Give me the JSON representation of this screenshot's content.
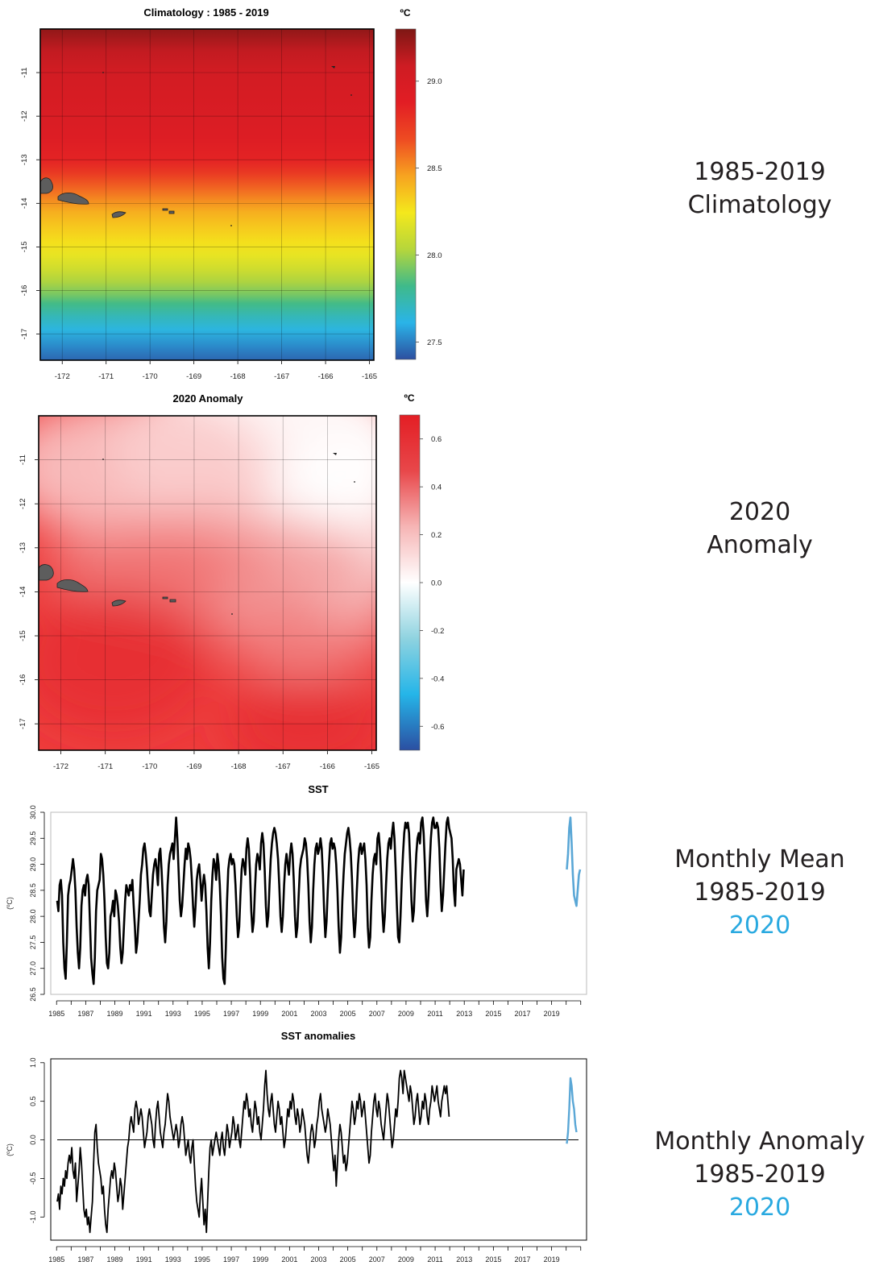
{
  "panels": {
    "climatology": {
      "title": "Climatology : 1985 - 2019",
      "unit": "ºC",
      "x_ticks": [
        "-172",
        "-171",
        "-170",
        "-169",
        "-168",
        "-167",
        "-166",
        "-165"
      ],
      "y_ticks": [
        "-11",
        "-12",
        "-13",
        "-14",
        "-15",
        "-16",
        "-17"
      ],
      "colorbar_ticks": [
        "29.0",
        "28.5",
        "28.0",
        "27.5"
      ],
      "colorbar_range": [
        27.4,
        29.3
      ],
      "colors": [
        "#2d4fa0",
        "#2ab4e8",
        "#3fba8a",
        "#b6d63b",
        "#f4e81c",
        "#f7a320",
        "#ee4b22",
        "#e21d24",
        "#ce1c23",
        "#7e1714"
      ]
    },
    "anomaly": {
      "title": "2020 Anomaly",
      "unit": "ºC",
      "x_ticks": [
        "-172",
        "-171",
        "-170",
        "-169",
        "-168",
        "-167",
        "-166",
        "-165"
      ],
      "y_ticks": [
        "-11",
        "-12",
        "-13",
        "-14",
        "-15",
        "-16",
        "-17"
      ],
      "colorbar_ticks": [
        "0.6",
        "0.4",
        "0.2",
        "0.0",
        "-0.2",
        "-0.4",
        "-0.6"
      ],
      "colorbar_range": [
        -0.7,
        0.7
      ],
      "colors": [
        "#2b4fa2",
        "#25b5e8",
        "#8fd3e0",
        "#ffffff",
        "#f6b5b5",
        "#e8474a",
        "#e31e24"
      ]
    }
  },
  "side_labels": {
    "climatology": {
      "line1": "1985-2019",
      "line2": "Climatology"
    },
    "anomaly": {
      "line1": "2020",
      "line2": "Anomaly"
    },
    "monthly_mean": {
      "line1": "Monthly Mean",
      "line2": "1985-2019",
      "line3": "2020"
    },
    "monthly_anomaly": {
      "line1": "Monthly Anomaly",
      "line2": "1985-2019",
      "line3": "2020"
    }
  },
  "series_colors": {
    "historical": "#000000",
    "current": "#5aa7d6"
  },
  "chart_data": [
    {
      "type": "heatmap",
      "title": "Climatology : 1985 - 2019",
      "colorbar_label": "ºC",
      "x_ticks": [
        -172,
        -171,
        -170,
        -169,
        -168,
        -167,
        -166,
        -165
      ],
      "y_ticks": [
        -11,
        -12,
        -13,
        -14,
        -15,
        -16,
        -17
      ],
      "xlim": [
        -172.5,
        -164.9
      ],
      "ylim": [
        -17.6,
        -10.0
      ],
      "color_range": [
        27.4,
        29.3
      ],
      "colorbar_ticks": [
        29.0,
        28.5,
        28.0,
        27.5
      ],
      "profile_by_latitude": {
        "lat": [
          -10.0,
          -10.5,
          -11.0,
          -11.5,
          -12.0,
          -12.5,
          -13.0,
          -13.3,
          -13.6,
          -13.9,
          -14.2,
          -14.5,
          -14.9,
          -15.2,
          -15.5,
          -15.8,
          -16.1,
          -16.3,
          -16.6,
          -16.9,
          -17.3,
          -17.6
        ],
        "value": [
          29.25,
          29.12,
          29.05,
          29.0,
          28.97,
          28.93,
          28.85,
          28.75,
          28.62,
          28.52,
          28.42,
          28.35,
          28.27,
          28.2,
          28.12,
          28.02,
          27.92,
          27.83,
          27.72,
          27.63,
          27.52,
          27.45
        ]
      },
      "grid": true
    },
    {
      "type": "heatmap",
      "title": "2020 Anomaly",
      "colorbar_label": "ºC",
      "x_ticks": [
        -172,
        -171,
        -170,
        -169,
        -168,
        -167,
        -166,
        -165
      ],
      "y_ticks": [
        -11,
        -12,
        -13,
        -14,
        -15,
        -16,
        -17
      ],
      "xlim": [
        -172.5,
        -164.9
      ],
      "ylim": [
        -17.6,
        -10.0
      ],
      "color_range": [
        -0.7,
        0.7
      ],
      "colorbar_ticks": [
        0.6,
        0.4,
        0.2,
        0.0,
        -0.2,
        -0.4,
        -0.6
      ],
      "field_approx": {
        "nw": 0.35,
        "ne": 0.15,
        "sw": 0.6,
        "se": 0.6
      },
      "grid": true
    },
    {
      "type": "line",
      "title": "SST",
      "ylabel": "(ºC)",
      "ylim": [
        26.5,
        30.0
      ],
      "yticks": [
        26.5,
        27.0,
        27.5,
        28.0,
        28.5,
        29.0,
        29.5,
        30.0
      ],
      "xlim": [
        1984.6,
        2021.4
      ],
      "xticks": [
        1985,
        1987,
        1989,
        1991,
        1993,
        1995,
        1997,
        1999,
        2001,
        2003,
        2005,
        2007,
        2009,
        2011,
        2013,
        2015,
        2017,
        2019
      ],
      "grid": false,
      "series": [
        {
          "name": "1985-2019",
          "start_year": 1985,
          "values": [
            28.3,
            28.1,
            28.6,
            28.7,
            28.4,
            27.5,
            27.0,
            26.8,
            27.5,
            28.4,
            28.6,
            28.7,
            28.9,
            29.1,
            28.9,
            28.5,
            27.8,
            27.3,
            27.0,
            27.4,
            28.2,
            28.5,
            28.6,
            28.4,
            28.7,
            28.8,
            28.6,
            27.9,
            27.2,
            26.9,
            26.7,
            27.2,
            28.1,
            28.5,
            28.6,
            28.7,
            29.2,
            29.1,
            28.8,
            28.3,
            27.6,
            27.1,
            27.0,
            27.3,
            28.0,
            28.1,
            28.3,
            28.0,
            28.5,
            28.4,
            28.2,
            27.9,
            27.4,
            27.1,
            27.3,
            27.8,
            28.3,
            28.6,
            28.5,
            28.4,
            28.6,
            28.5,
            28.7,
            28.2,
            27.8,
            27.3,
            27.5,
            27.9,
            28.3,
            28.8,
            29.0,
            29.3,
            29.4,
            29.2,
            28.9,
            28.5,
            28.1,
            28.0,
            28.4,
            28.8,
            29.0,
            29.1,
            28.9,
            28.6,
            29.2,
            29.3,
            28.9,
            28.4,
            27.8,
            27.5,
            27.9,
            28.6,
            29.0,
            29.2,
            29.3,
            29.4,
            29.1,
            29.5,
            29.9,
            29.5,
            28.9,
            28.3,
            28.0,
            28.2,
            28.6,
            29.0,
            29.3,
            29.1,
            29.4,
            29.3,
            29.1,
            28.7,
            28.2,
            27.8,
            28.2,
            28.7,
            28.9,
            29.0,
            28.7,
            28.3,
            28.6,
            28.8,
            28.6,
            28.1,
            27.4,
            27.0,
            27.5,
            28.3,
            28.8,
            29.1,
            29.0,
            28.7,
            29.2,
            29.0,
            28.6,
            28.0,
            27.2,
            26.8,
            26.7,
            27.4,
            28.3,
            28.9,
            29.1,
            29.2,
            29.0,
            29.1,
            29.0,
            28.6,
            28.0,
            27.6,
            27.8,
            28.4,
            28.9,
            29.1,
            29.0,
            28.8,
            29.3,
            29.5,
            29.3,
            28.8,
            28.1,
            27.7,
            27.9,
            28.5,
            29.0,
            29.2,
            29.1,
            28.9,
            29.4,
            29.6,
            29.4,
            28.9,
            28.2,
            27.8,
            28.0,
            28.6,
            29.1,
            29.4,
            29.6,
            29.7,
            29.6,
            29.4,
            29.1,
            28.6,
            28.0,
            27.7,
            28.0,
            28.6,
            29.0,
            29.2,
            29.0,
            28.8,
            29.2,
            29.4,
            29.2,
            28.7,
            28.0,
            27.6,
            27.8,
            28.4,
            28.9,
            29.1,
            29.2,
            29.3,
            29.5,
            29.4,
            29.1,
            28.6,
            27.9,
            27.5,
            27.8,
            28.5,
            29.0,
            29.3,
            29.4,
            29.2,
            29.3,
            29.5,
            29.3,
            28.8,
            28.1,
            27.6,
            27.9,
            28.5,
            29.0,
            29.4,
            29.5,
            29.3,
            29.4,
            29.3,
            29.0,
            28.5,
            27.8,
            27.3,
            27.6,
            28.3,
            28.8,
            29.2,
            29.4,
            29.6,
            29.7,
            29.5,
            29.2,
            28.7,
            28.0,
            27.6,
            27.9,
            28.5,
            29.0,
            29.3,
            29.4,
            29.2,
            29.3,
            29.4,
            29.1,
            28.6,
            27.8,
            27.4,
            27.6,
            28.3,
            28.8,
            29.1,
            29.2,
            29.0,
            29.5,
            29.6,
            29.3,
            28.8,
            28.1,
            27.7,
            28.0,
            28.6,
            29.1,
            29.4,
            29.5,
            29.3,
            29.6,
            29.8,
            29.5,
            28.9,
            28.2,
            27.6,
            27.5,
            28.0,
            28.7,
            29.2,
            29.6,
            29.8,
            29.7,
            29.8,
            29.6,
            29.0,
            28.3,
            27.9,
            28.1,
            28.7,
            29.2,
            29.5,
            29.6,
            29.4,
            29.8,
            29.9,
            29.6,
            29.0,
            28.3,
            28.0,
            28.4,
            29.0,
            29.5,
            29.8,
            29.9,
            29.7,
            29.7,
            29.8,
            29.7,
            29.3,
            28.6,
            28.1,
            28.4,
            28.9,
            29.4,
            29.8,
            29.9,
            29.7,
            29.6,
            29.5,
            29.1,
            28.5,
            28.2,
            28.9,
            29.0,
            29.1,
            29.0,
            28.7,
            28.4,
            28.9
          ]
        },
        {
          "name": "2020",
          "start_year": 2020,
          "values": [
            28.9,
            29.2,
            29.7,
            29.9,
            29.4,
            28.8,
            28.4,
            28.3,
            28.2,
            28.5,
            28.8,
            28.9
          ]
        }
      ]
    },
    {
      "type": "line",
      "title": "SST anomalies",
      "ylabel": "(ºC)",
      "ylim": [
        -1.3,
        1.05
      ],
      "yticks": [
        -1.0,
        -0.5,
        0.0,
        0.5,
        1.0
      ],
      "xlim": [
        1984.6,
        2021.4
      ],
      "xticks": [
        1985,
        1987,
        1989,
        1991,
        1993,
        1995,
        1997,
        1999,
        2001,
        2003,
        2005,
        2007,
        2009,
        2011,
        2013,
        2015,
        2017,
        2019
      ],
      "reference_line": 0.0,
      "grid": false,
      "series": [
        {
          "name": "1985-2019",
          "start_year": 1985,
          "values": [
            -0.8,
            -0.7,
            -0.9,
            -0.6,
            -0.7,
            -0.5,
            -0.6,
            -0.4,
            -0.5,
            -0.3,
            -0.2,
            -0.3,
            -0.1,
            -0.4,
            -0.5,
            -0.3,
            -0.8,
            -0.6,
            -0.4,
            -0.1,
            -0.3,
            -0.6,
            -0.9,
            -1.0,
            -0.9,
            -1.1,
            -1.0,
            -1.2,
            -1.0,
            -0.8,
            -0.3,
            0.1,
            0.2,
            -0.1,
            -0.3,
            -0.4,
            -0.5,
            -0.7,
            -0.6,
            -0.9,
            -1.1,
            -1.2,
            -0.9,
            -0.7,
            -0.5,
            -0.4,
            -0.5,
            -0.3,
            -0.4,
            -0.6,
            -0.8,
            -0.7,
            -0.5,
            -0.6,
            -0.9,
            -0.7,
            -0.5,
            -0.3,
            -0.1,
            0.0,
            0.2,
            0.3,
            0.2,
            0.1,
            0.4,
            0.5,
            0.4,
            0.2,
            0.3,
            0.4,
            0.3,
            0.1,
            -0.1,
            0.0,
            0.1,
            0.3,
            0.4,
            0.3,
            0.2,
            0.0,
            -0.1,
            0.2,
            0.4,
            0.5,
            0.3,
            0.1,
            0.0,
            -0.1,
            0.1,
            0.2,
            0.4,
            0.6,
            0.5,
            0.3,
            0.2,
            0.1,
            0.0,
            0.1,
            0.2,
            0.1,
            -0.1,
            0.0,
            0.2,
            0.3,
            0.2,
            0.0,
            -0.2,
            -0.1,
            0.0,
            -0.2,
            -0.3,
            -0.1,
            0.0,
            -0.3,
            -0.6,
            -0.8,
            -0.9,
            -1.0,
            -0.7,
            -0.5,
            -0.8,
            -1.1,
            -0.9,
            -1.2,
            -0.8,
            -0.4,
            -0.1,
            0.0,
            -0.2,
            -0.1,
            0.0,
            0.1,
            0.0,
            -0.1,
            -0.2,
            0.0,
            0.1,
            -0.1,
            -0.2,
            0.0,
            0.2,
            0.1,
            -0.1,
            0.0,
            0.1,
            0.3,
            0.2,
            0.0,
            0.1,
            0.2,
            0.0,
            -0.1,
            0.1,
            0.3,
            0.5,
            0.4,
            0.6,
            0.5,
            0.3,
            0.4,
            0.2,
            0.1,
            0.3,
            0.5,
            0.4,
            0.2,
            0.3,
            0.1,
            0.0,
            0.2,
            0.4,
            0.7,
            0.9,
            0.6,
            0.4,
            0.3,
            0.5,
            0.6,
            0.4,
            0.2,
            0.1,
            0.3,
            0.5,
            0.4,
            0.2,
            0.3,
            0.1,
            -0.1,
            0.0,
            0.2,
            0.4,
            0.3,
            0.5,
            0.4,
            0.6,
            0.5,
            0.3,
            0.2,
            0.4,
            0.3,
            0.1,
            0.2,
            0.4,
            0.3,
            0.2,
            0.0,
            -0.2,
            -0.3,
            -0.1,
            0.1,
            0.2,
            0.1,
            -0.1,
            0.0,
            0.2,
            0.3,
            0.5,
            0.6,
            0.4,
            0.3,
            0.2,
            0.1,
            0.2,
            0.4,
            0.3,
            0.2,
            0.0,
            -0.2,
            -0.4,
            -0.2,
            -0.6,
            -0.3,
            0.0,
            0.2,
            0.1,
            -0.1,
            -0.3,
            -0.2,
            -0.4,
            -0.3,
            -0.1,
            0.1,
            0.3,
            0.5,
            0.4,
            0.2,
            0.3,
            0.5,
            0.4,
            0.6,
            0.5,
            0.3,
            0.4,
            0.5,
            0.3,
            0.1,
            -0.1,
            -0.3,
            -0.2,
            0.1,
            0.3,
            0.5,
            0.6,
            0.4,
            0.3,
            0.5,
            0.4,
            0.2,
            0.1,
            0.0,
            0.2,
            0.4,
            0.6,
            0.5,
            0.3,
            0.1,
            -0.1,
            0.0,
            0.2,
            0.4,
            0.3,
            0.5,
            0.8,
            0.9,
            0.8,
            0.6,
            0.9,
            0.8,
            0.7,
            0.6,
            0.5,
            0.7,
            0.6,
            0.4,
            0.2,
            0.3,
            0.5,
            0.6,
            0.4,
            0.2,
            0.3,
            0.5,
            0.4,
            0.6,
            0.5,
            0.3,
            0.2,
            0.4,
            0.5,
            0.7,
            0.6,
            0.5,
            0.6,
            0.7,
            0.5,
            0.4,
            0.3,
            0.5,
            0.6,
            0.7,
            0.6,
            0.7,
            0.5,
            0.3
          ]
        },
        {
          "name": "2020",
          "start_year": 2020,
          "values": [
            -0.05,
            0.1,
            0.4,
            0.8,
            0.7,
            0.5,
            0.4,
            0.2,
            0.1
          ]
        }
      ]
    }
  ]
}
